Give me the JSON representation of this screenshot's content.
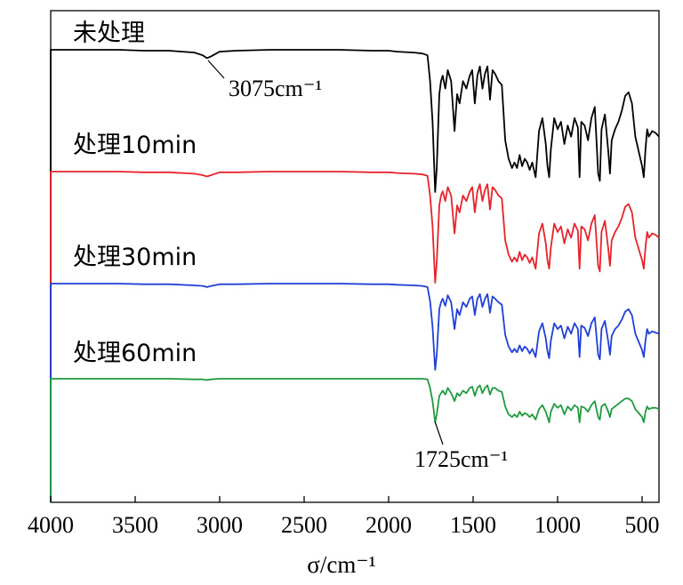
{
  "chart_data": {
    "type": "line",
    "xlabel": "σ/cm⁻¹",
    "xlim": [
      4000,
      400
    ],
    "x_reversed": true,
    "xticks": [
      4000,
      3500,
      3000,
      2500,
      2000,
      1500,
      1000,
      500
    ],
    "y_ticks_shown": false,
    "grid": false,
    "series": [
      {
        "name": "未处理",
        "color": "#000000",
        "x": [
          4000,
          3800,
          3600,
          3450,
          3300,
          3150,
          3100,
          3075,
          3050,
          3000,
          2900,
          2700,
          2500,
          2300,
          2100,
          2000,
          1950,
          1850,
          1800,
          1770,
          1755,
          1740,
          1725,
          1715,
          1700,
          1690,
          1680,
          1665,
          1650,
          1630,
          1610,
          1595,
          1580,
          1560,
          1540,
          1520,
          1505,
          1490,
          1475,
          1460,
          1445,
          1430,
          1415,
          1400,
          1385,
          1370,
          1350,
          1330,
          1310,
          1290,
          1270,
          1255,
          1240,
          1225,
          1210,
          1195,
          1180,
          1165,
          1150,
          1130,
          1110,
          1090,
          1070,
          1060,
          1050,
          1040,
          1020,
          1000,
          980,
          960,
          940,
          920,
          900,
          880,
          870,
          860,
          840,
          820,
          800,
          780,
          760,
          750,
          740,
          720,
          700,
          690,
          680,
          660,
          640,
          620,
          600,
          580,
          560,
          540,
          520,
          500,
          490,
          480,
          470,
          460,
          440,
          420,
          400
        ],
        "y": [
          0.99,
          0.99,
          0.99,
          0.985,
          0.985,
          0.975,
          0.96,
          0.945,
          0.955,
          0.98,
          0.985,
          0.99,
          0.99,
          0.99,
          0.985,
          0.985,
          0.98,
          0.975,
          0.97,
          0.96,
          0.82,
          0.6,
          0.22,
          0.35,
          0.75,
          0.82,
          0.85,
          0.78,
          0.88,
          0.82,
          0.55,
          0.75,
          0.7,
          0.82,
          0.78,
          0.85,
          0.88,
          0.7,
          0.85,
          0.9,
          0.78,
          0.86,
          0.9,
          0.72,
          0.88,
          0.86,
          0.82,
          0.8,
          0.5,
          0.4,
          0.35,
          0.38,
          0.35,
          0.42,
          0.36,
          0.4,
          0.38,
          0.34,
          0.38,
          0.3,
          0.55,
          0.62,
          0.48,
          0.36,
          0.3,
          0.45,
          0.62,
          0.56,
          0.6,
          0.48,
          0.58,
          0.52,
          0.62,
          0.57,
          0.3,
          0.6,
          0.58,
          0.5,
          0.62,
          0.68,
          0.32,
          0.28,
          0.56,
          0.64,
          0.44,
          0.32,
          0.5,
          0.56,
          0.6,
          0.66,
          0.74,
          0.76,
          0.7,
          0.52,
          0.44,
          0.36,
          0.3,
          0.45,
          0.56,
          0.52,
          0.55,
          0.54,
          0.52
        ]
      },
      {
        "name": "处理10min",
        "color": "#e8222a",
        "x": [
          4000,
          3800,
          3600,
          3450,
          3300,
          3150,
          3100,
          3075,
          3050,
          3000,
          2900,
          2700,
          2500,
          2300,
          2100,
          2000,
          1950,
          1850,
          1800,
          1770,
          1755,
          1740,
          1725,
          1715,
          1700,
          1690,
          1680,
          1665,
          1650,
          1630,
          1610,
          1595,
          1580,
          1560,
          1540,
          1520,
          1505,
          1490,
          1475,
          1460,
          1445,
          1430,
          1415,
          1400,
          1385,
          1370,
          1350,
          1330,
          1310,
          1290,
          1270,
          1255,
          1240,
          1225,
          1210,
          1195,
          1180,
          1165,
          1150,
          1130,
          1110,
          1090,
          1070,
          1060,
          1050,
          1040,
          1020,
          1000,
          980,
          960,
          940,
          920,
          900,
          880,
          870,
          860,
          840,
          820,
          800,
          780,
          760,
          750,
          740,
          720,
          700,
          690,
          680,
          660,
          640,
          620,
          600,
          580,
          560,
          540,
          520,
          500,
          490,
          480,
          470,
          460,
          440,
          420,
          400
        ],
        "y": [
          0.99,
          0.99,
          0.99,
          0.985,
          0.985,
          0.975,
          0.965,
          0.955,
          0.965,
          0.985,
          0.985,
          0.99,
          0.99,
          0.99,
          0.985,
          0.985,
          0.98,
          0.975,
          0.97,
          0.96,
          0.82,
          0.6,
          0.2,
          0.35,
          0.75,
          0.82,
          0.85,
          0.78,
          0.88,
          0.82,
          0.55,
          0.75,
          0.7,
          0.82,
          0.78,
          0.85,
          0.88,
          0.7,
          0.85,
          0.9,
          0.78,
          0.86,
          0.9,
          0.72,
          0.88,
          0.86,
          0.82,
          0.8,
          0.5,
          0.4,
          0.35,
          0.38,
          0.35,
          0.42,
          0.36,
          0.4,
          0.38,
          0.34,
          0.38,
          0.3,
          0.55,
          0.62,
          0.48,
          0.36,
          0.3,
          0.45,
          0.62,
          0.56,
          0.6,
          0.48,
          0.58,
          0.52,
          0.62,
          0.57,
          0.3,
          0.6,
          0.58,
          0.5,
          0.62,
          0.68,
          0.32,
          0.28,
          0.56,
          0.64,
          0.44,
          0.32,
          0.5,
          0.56,
          0.6,
          0.66,
          0.74,
          0.76,
          0.7,
          0.52,
          0.44,
          0.36,
          0.3,
          0.45,
          0.56,
          0.52,
          0.55,
          0.54,
          0.52
        ]
      },
      {
        "name": "处理30min",
        "color": "#1f3fd8",
        "x": [
          4000,
          3800,
          3600,
          3450,
          3300,
          3150,
          3100,
          3075,
          3050,
          3000,
          2900,
          2700,
          2500,
          2300,
          2100,
          2000,
          1950,
          1850,
          1800,
          1770,
          1755,
          1740,
          1725,
          1715,
          1700,
          1690,
          1680,
          1665,
          1650,
          1630,
          1610,
          1595,
          1580,
          1560,
          1540,
          1520,
          1505,
          1490,
          1475,
          1460,
          1445,
          1430,
          1415,
          1400,
          1385,
          1370,
          1350,
          1330,
          1310,
          1290,
          1270,
          1255,
          1240,
          1225,
          1210,
          1195,
          1180,
          1165,
          1150,
          1130,
          1110,
          1090,
          1070,
          1060,
          1050,
          1040,
          1020,
          1000,
          980,
          960,
          940,
          920,
          900,
          880,
          870,
          860,
          840,
          820,
          800,
          780,
          760,
          750,
          740,
          720,
          700,
          690,
          680,
          660,
          640,
          620,
          600,
          580,
          560,
          540,
          520,
          500,
          490,
          480,
          470,
          460,
          440,
          420,
          400
        ],
        "y": [
          0.99,
          0.99,
          0.99,
          0.985,
          0.985,
          0.975,
          0.97,
          0.96,
          0.97,
          0.985,
          0.985,
          0.99,
          0.99,
          0.99,
          0.985,
          0.985,
          0.98,
          0.975,
          0.97,
          0.96,
          0.84,
          0.62,
          0.25,
          0.38,
          0.77,
          0.83,
          0.86,
          0.8,
          0.89,
          0.83,
          0.6,
          0.77,
          0.72,
          0.83,
          0.79,
          0.86,
          0.88,
          0.72,
          0.86,
          0.9,
          0.79,
          0.86,
          0.9,
          0.74,
          0.88,
          0.86,
          0.83,
          0.81,
          0.55,
          0.45,
          0.4,
          0.43,
          0.4,
          0.46,
          0.41,
          0.45,
          0.43,
          0.39,
          0.43,
          0.36,
          0.58,
          0.65,
          0.52,
          0.41,
          0.35,
          0.5,
          0.65,
          0.6,
          0.63,
          0.52,
          0.62,
          0.56,
          0.65,
          0.6,
          0.36,
          0.63,
          0.61,
          0.54,
          0.65,
          0.7,
          0.38,
          0.34,
          0.6,
          0.67,
          0.49,
          0.38,
          0.54,
          0.6,
          0.63,
          0.68,
          0.75,
          0.77,
          0.72,
          0.56,
          0.49,
          0.42,
          0.36,
          0.5,
          0.6,
          0.56,
          0.58,
          0.57,
          0.56
        ]
      },
      {
        "name": "处理60min",
        "color": "#1e9b3c",
        "x": [
          4000,
          3800,
          3600,
          3450,
          3300,
          3150,
          3100,
          3075,
          3050,
          3000,
          2900,
          2700,
          2500,
          2300,
          2100,
          2000,
          1950,
          1850,
          1800,
          1770,
          1755,
          1740,
          1725,
          1715,
          1700,
          1690,
          1680,
          1665,
          1650,
          1630,
          1610,
          1595,
          1580,
          1560,
          1540,
          1520,
          1505,
          1490,
          1475,
          1460,
          1445,
          1430,
          1415,
          1400,
          1385,
          1370,
          1350,
          1330,
          1310,
          1290,
          1270,
          1255,
          1240,
          1225,
          1210,
          1195,
          1180,
          1165,
          1150,
          1130,
          1110,
          1090,
          1070,
          1060,
          1050,
          1040,
          1020,
          1000,
          980,
          960,
          940,
          920,
          900,
          880,
          870,
          860,
          840,
          820,
          800,
          780,
          760,
          750,
          740,
          720,
          700,
          690,
          680,
          660,
          640,
          620,
          600,
          580,
          560,
          540,
          520,
          500,
          490,
          480,
          470,
          460,
          440,
          420,
          400
        ],
        "y": [
          0.99,
          0.99,
          0.99,
          0.99,
          0.99,
          0.985,
          0.985,
          0.98,
          0.985,
          0.99,
          0.99,
          0.99,
          0.99,
          0.99,
          0.99,
          0.99,
          0.99,
          0.99,
          0.99,
          0.985,
          0.92,
          0.82,
          0.66,
          0.72,
          0.86,
          0.88,
          0.9,
          0.87,
          0.92,
          0.88,
          0.82,
          0.88,
          0.86,
          0.9,
          0.88,
          0.92,
          0.93,
          0.86,
          0.92,
          0.94,
          0.88,
          0.92,
          0.94,
          0.87,
          0.92,
          0.92,
          0.9,
          0.89,
          0.78,
          0.72,
          0.7,
          0.72,
          0.7,
          0.74,
          0.71,
          0.73,
          0.72,
          0.7,
          0.72,
          0.68,
          0.76,
          0.79,
          0.74,
          0.7,
          0.66,
          0.74,
          0.8,
          0.77,
          0.79,
          0.72,
          0.78,
          0.75,
          0.79,
          0.77,
          0.66,
          0.78,
          0.77,
          0.74,
          0.79,
          0.82,
          0.7,
          0.68,
          0.78,
          0.8,
          0.74,
          0.7,
          0.76,
          0.78,
          0.8,
          0.82,
          0.84,
          0.84,
          0.82,
          0.76,
          0.73,
          0.7,
          0.66,
          0.74,
          0.78,
          0.76,
          0.77,
          0.77,
          0.76
        ]
      }
    ],
    "annotations": [
      {
        "text": "3075cm⁻¹",
        "x": 3075,
        "series": 0
      },
      {
        "text": "1725cm⁻¹",
        "x": 1725,
        "series": 3
      }
    ]
  }
}
